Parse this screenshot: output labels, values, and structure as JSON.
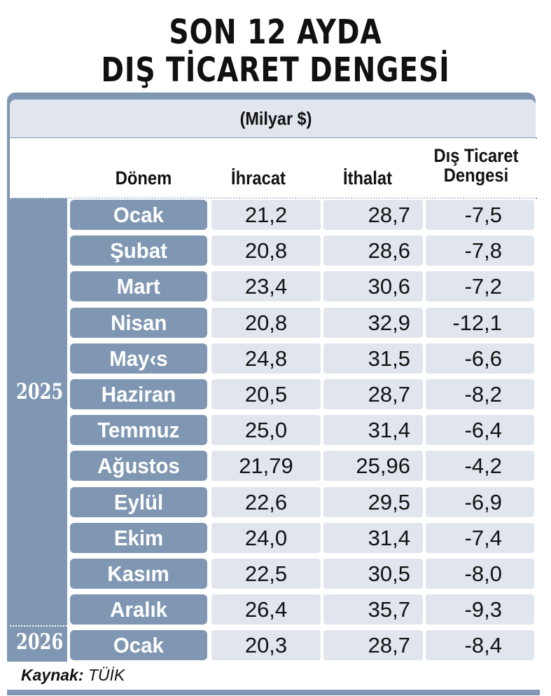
{
  "title": {
    "line1": "SON 12 AYDA",
    "line2": "DIŞ TİCARET DENGESİ"
  },
  "unit": "(Milyar $)",
  "columns": {
    "period": "Dönem",
    "exports": "İhracat",
    "imports": "İthalat",
    "balance_line1": "Dış Ticaret",
    "balance_line2": "Dengesi"
  },
  "years": {
    "y2025": "2025",
    "y2026": "2026"
  },
  "source": {
    "label": "Kaynak:",
    "value": "TÜİK"
  },
  "colors": {
    "frame": "#7f97b3",
    "cell": "#e1e5ee"
  },
  "chart_data": {
    "type": "table",
    "title": "SON 12 AYDA DIŞ TİCARET DENGESİ",
    "unit": "(Milyar $)",
    "headers": [
      "Dönem",
      "İhracat",
      "İthalat",
      "Dış Ticaret Dengesi"
    ],
    "rows": [
      {
        "year": "2025",
        "month": "Ocak",
        "exports": "21,2",
        "imports": "28,7",
        "balance": "-7,5"
      },
      {
        "year": "2025",
        "month": "Şubat",
        "exports": "20,8",
        "imports": "28,6",
        "balance": "-7,8"
      },
      {
        "year": "2025",
        "month": "Mart",
        "exports": "23,4",
        "imports": "30,6",
        "balance": "-7,2"
      },
      {
        "year": "2025",
        "month": "Nisan",
        "exports": "20,8",
        "imports": "32,9",
        "balance": "-12,1"
      },
      {
        "year": "2025",
        "month": "May‹s",
        "exports": "24,8",
        "imports": "31,5",
        "balance": "-6,6"
      },
      {
        "year": "2025",
        "month": "Haziran",
        "exports": "20,5",
        "imports": "28,7",
        "balance": "-8,2"
      },
      {
        "year": "2025",
        "month": "Temmuz",
        "exports": "25,0",
        "imports": "31,4",
        "balance": "-6,4"
      },
      {
        "year": "2025",
        "month": "Ağustos",
        "exports": "21,79",
        "imports": "25,96",
        "balance": "-4,2"
      },
      {
        "year": "2025",
        "month": "Eylül",
        "exports": "22,6",
        "imports": "29,5",
        "balance": "-6,9"
      },
      {
        "year": "2025",
        "month": "Ekim",
        "exports": "24,0",
        "imports": "31,4",
        "balance": "-7,4"
      },
      {
        "year": "2025",
        "month": "Kasım",
        "exports": "22,5",
        "imports": "30,5",
        "balance": "-8,0"
      },
      {
        "year": "2025",
        "month": "Aralık",
        "exports": "26,4",
        "imports": "35,7",
        "balance": "-9,3"
      },
      {
        "year": "2026",
        "month": "Ocak",
        "exports": "20,3",
        "imports": "28,7",
        "balance": "-8,4"
      }
    ]
  }
}
